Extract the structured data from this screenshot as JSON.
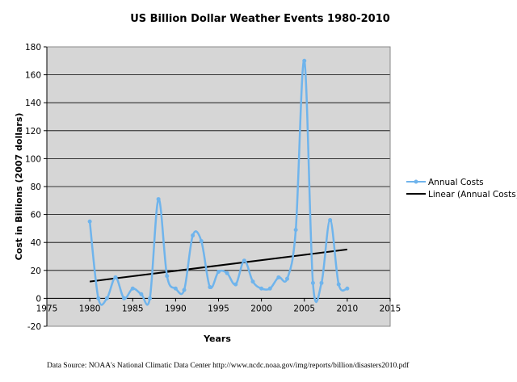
{
  "chart_data": {
    "type": "line",
    "title": "US Billion Dollar Weather Events 1980-2010",
    "xlabel": "Years",
    "ylabel": "Cost in Billions (2007 dollars)",
    "xlim": [
      1975,
      2015
    ],
    "ylim": [
      -20,
      180
    ],
    "x_ticks": [
      1975,
      1980,
      1985,
      1990,
      1995,
      2000,
      2005,
      2010,
      2015
    ],
    "y_ticks": [
      -20,
      0,
      20,
      40,
      60,
      80,
      100,
      120,
      140,
      160,
      180
    ],
    "grid": "horizontal",
    "legend_position": "right",
    "colors": {
      "annual": "#6fb4ec",
      "linear": "#000000",
      "plot_bg": "#d6d6d6"
    },
    "series": [
      {
        "name": "Annual Costs",
        "style": "smoothed-line-markers",
        "x": [
          1980,
          1981,
          1982,
          1983,
          1984,
          1985,
          1986,
          1987,
          1988,
          1989,
          1990,
          1991,
          1992,
          1993,
          1994,
          1995,
          1996,
          1997,
          1998,
          1999,
          2000,
          2001,
          2002,
          2003,
          2004,
          2005,
          2006,
          2007,
          2008,
          2009,
          2010
        ],
        "values": [
          55,
          0,
          0,
          15,
          0,
          7,
          3,
          0,
          71,
          16,
          7,
          6,
          45,
          41,
          8,
          19,
          18,
          10,
          27,
          12,
          7,
          7,
          15,
          14,
          49,
          170,
          11,
          11,
          56,
          10,
          7
        ]
      },
      {
        "name": "Linear (Annual Costs)",
        "style": "trendline",
        "x": [
          1980,
          2010
        ],
        "values": [
          12,
          35
        ]
      }
    ],
    "source": "Data Source: NOAA's National Climatic Data Center http://www.ncdc.noaa.gov/img/reports/billion/disasters2010.pdf"
  }
}
